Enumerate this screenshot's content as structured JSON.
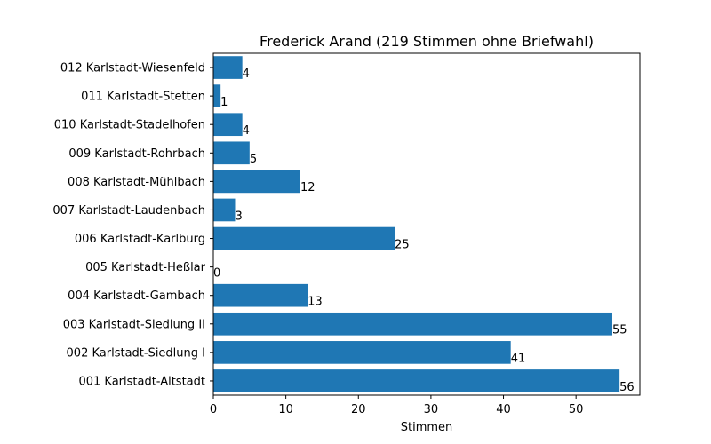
{
  "chart_data": {
    "type": "bar",
    "orientation": "horizontal",
    "title": "Frederick Arand (219 Stimmen ohne Briefwahl)",
    "xlabel": "Stimmen",
    "ylabel": "",
    "xlim": [
      0,
      58.8
    ],
    "xticks": [
      0,
      10,
      20,
      30,
      40,
      50
    ],
    "categories": [
      "001 Karlstadt-Altstadt",
      "002 Karlstadt-Siedlung I",
      "003 Karlstadt-Siedlung II",
      "004 Karlstadt-Gambach",
      "005 Karlstadt-Heßlar",
      "006 Karlstadt-Karlburg",
      "007 Karlstadt-Laudenbach",
      "008 Karlstadt-Mühlbach",
      "009 Karlstadt-Rohrbach",
      "010 Karlstadt-Stadelhofen",
      "011 Karlstadt-Stetten",
      "012 Karlstadt-Wiesenfeld"
    ],
    "values": [
      56,
      41,
      55,
      13,
      0,
      25,
      3,
      12,
      5,
      4,
      1,
      4
    ],
    "data_labels": [
      "56",
      "41",
      "55",
      "13",
      "0",
      "25",
      "3",
      "12",
      "5",
      "4",
      "1",
      "4"
    ],
    "bar_color": "#1f77b4",
    "grid": false,
    "legend": "none"
  }
}
